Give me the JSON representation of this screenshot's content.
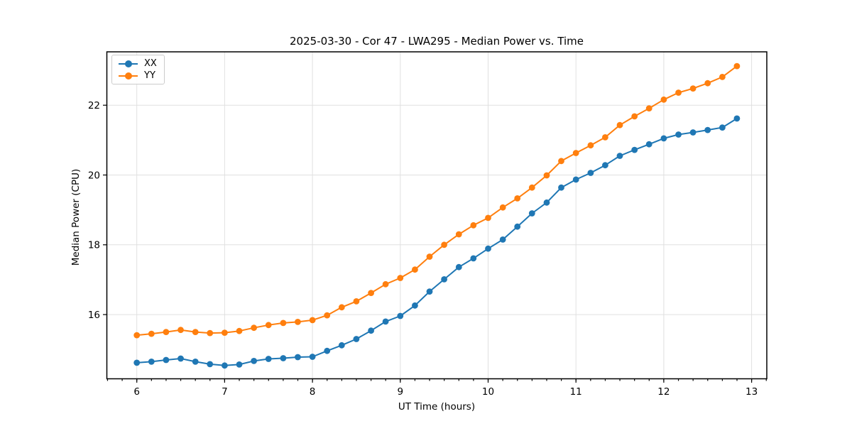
{
  "chart_data": {
    "type": "line",
    "title": "2025-03-30 - Cor 47 - LWA295 - Median Power vs. Time",
    "xlabel": "UT Time (hours)",
    "ylabel": "Median Power (CPU)",
    "xlim": [
      5.659,
      13.173
    ],
    "ylim": [
      14.16,
      23.53
    ],
    "x_ticks": [
      6,
      7,
      8,
      9,
      10,
      11,
      12,
      13
    ],
    "y_ticks": [
      16,
      18,
      20,
      22
    ],
    "x_minor_tick_step": 0.16667,
    "grid": true,
    "legend_position": "upper-left",
    "background": "#ffffff",
    "grid_color": "#e0e0e0",
    "axis_color": "#000000",
    "x": [
      6.0,
      6.167,
      6.333,
      6.5,
      6.667,
      6.833,
      7.0,
      7.167,
      7.333,
      7.5,
      7.667,
      7.833,
      8.0,
      8.167,
      8.333,
      8.5,
      8.667,
      8.833,
      9.0,
      9.167,
      9.333,
      9.5,
      9.667,
      9.833,
      10.0,
      10.167,
      10.333,
      10.5,
      10.667,
      10.833,
      11.0,
      11.167,
      11.333,
      11.5,
      11.667,
      11.833,
      12.0,
      12.167,
      12.333,
      12.5,
      12.667,
      12.833
    ],
    "series": [
      {
        "name": "XX",
        "color": "#1f77b4",
        "values": [
          14.62,
          14.65,
          14.7,
          14.74,
          14.65,
          14.58,
          14.54,
          14.57,
          14.67,
          14.73,
          14.75,
          14.78,
          14.79,
          14.96,
          15.12,
          15.3,
          15.54,
          15.8,
          15.96,
          16.26,
          16.66,
          17.01,
          17.36,
          17.61,
          17.89,
          18.15,
          18.52,
          18.9,
          19.21,
          19.64,
          19.87,
          20.06,
          20.28,
          20.55,
          20.72,
          20.88,
          21.05,
          21.16,
          21.22,
          21.29,
          21.36,
          21.62
        ]
      },
      {
        "name": "YY",
        "color": "#ff7f0e",
        "values": [
          15.41,
          15.45,
          15.5,
          15.56,
          15.5,
          15.47,
          15.48,
          15.53,
          15.62,
          15.7,
          15.76,
          15.79,
          15.84,
          15.98,
          16.21,
          16.38,
          16.62,
          16.87,
          17.05,
          17.29,
          17.66,
          18.0,
          18.3,
          18.56,
          18.77,
          19.07,
          19.33,
          19.64,
          19.99,
          20.4,
          20.63,
          20.85,
          21.08,
          21.43,
          21.68,
          21.91,
          22.16,
          22.36,
          22.48,
          22.63,
          22.81,
          23.12
        ]
      }
    ]
  }
}
